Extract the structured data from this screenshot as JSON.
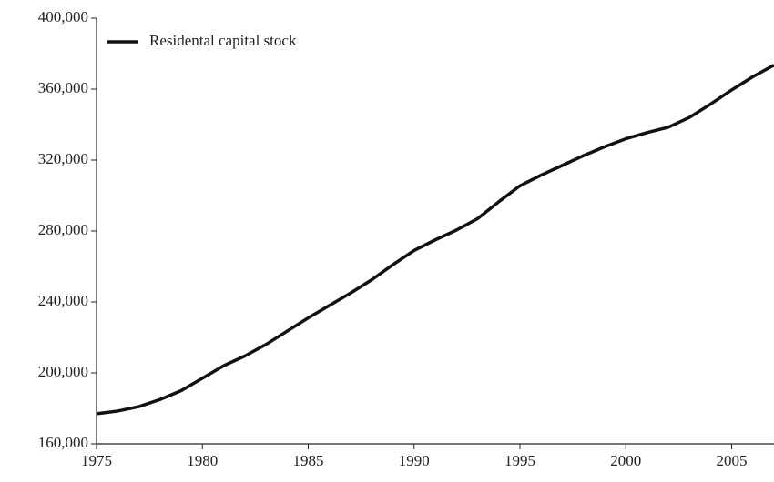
{
  "chart_data": {
    "type": "line",
    "x": [
      1975,
      1976,
      1977,
      1978,
      1979,
      1980,
      1981,
      1982,
      1983,
      1984,
      1985,
      1986,
      1987,
      1988,
      1989,
      1990,
      1991,
      1992,
      1993,
      1994,
      1995,
      1996,
      1997,
      1998,
      1999,
      2000,
      2001,
      2002,
      2003,
      2004,
      2005,
      2006,
      2007
    ],
    "series": [
      {
        "name": "Residental capital stock",
        "color": "#111111",
        "values": [
          177000,
          178500,
          181000,
          185000,
          190000,
          197000,
          204000,
          209500,
          216000,
          223500,
          231000,
          238000,
          245000,
          252500,
          261000,
          269000,
          275000,
          280500,
          287000,
          296500,
          305500,
          311500,
          317000,
          322500,
          327500,
          332000,
          335500,
          338500,
          344000,
          351500,
          359500,
          367000,
          373500
        ]
      }
    ],
    "xlim": [
      1975,
      2007
    ],
    "xticks": [
      1975,
      1980,
      1985,
      1990,
      1995,
      2000,
      2005
    ],
    "ylim": [
      160000,
      400000
    ],
    "yticks": [
      {
        "value": 160000,
        "label": "160,000"
      },
      {
        "value": 200000,
        "label": "200,000"
      },
      {
        "value": 240000,
        "label": "240,000"
      },
      {
        "value": 280000,
        "label": "280,000"
      },
      {
        "value": 320000,
        "label": "320,000"
      },
      {
        "value": 360000,
        "label": "360,000"
      },
      {
        "value": 400000,
        "label": "400,000"
      }
    ],
    "legend": "upper left",
    "grid": false
  }
}
